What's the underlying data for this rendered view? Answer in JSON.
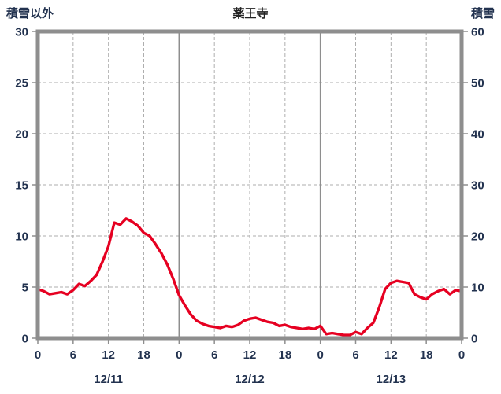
{
  "header": {
    "left_label": "積雪以外",
    "title": "薬王寺",
    "right_label": "積雪"
  },
  "chart_data": {
    "type": "line",
    "title": "薬王寺",
    "left_axis": {
      "label": "積雪以外",
      "range": [
        0,
        30
      ],
      "ticks": [
        0,
        5,
        10,
        15,
        20,
        25,
        30
      ]
    },
    "right_axis": {
      "label": "積雪",
      "range": [
        0,
        60
      ],
      "ticks": [
        0,
        10,
        20,
        30,
        40,
        50,
        60
      ]
    },
    "x_axis": {
      "range": [
        0,
        72
      ],
      "hour_ticks": [
        0,
        6,
        12,
        18,
        24,
        30,
        36,
        42,
        48,
        54,
        60,
        66,
        72
      ],
      "hour_tick_labels": [
        "0",
        "6",
        "12",
        "18",
        "0",
        "6",
        "12",
        "18",
        "0",
        "6",
        "12",
        "18",
        "0"
      ],
      "day_labels": [
        "12/11",
        "12/12",
        "12/13"
      ],
      "day_label_positions": [
        12,
        36,
        60
      ]
    },
    "grid": {
      "horizontal_dashed_at": [
        5,
        10,
        15,
        20,
        25
      ],
      "vertical_dashed": true,
      "solid_day_boundaries": [
        24,
        48
      ]
    },
    "series": [
      {
        "name": "積雪以外",
        "axis": "left",
        "color": "#e60021",
        "width": 3.4,
        "x": [
          0,
          1,
          2,
          3,
          4,
          5,
          6,
          7,
          8,
          9,
          10,
          11,
          12,
          13,
          14,
          15,
          16,
          17,
          18,
          19,
          20,
          21,
          22,
          23,
          24,
          25,
          26,
          27,
          28,
          29,
          30,
          31,
          32,
          33,
          34,
          35,
          36,
          37,
          38,
          39,
          40,
          41,
          42,
          43,
          44,
          45,
          46,
          47,
          48,
          49,
          50,
          51,
          52,
          53,
          54,
          55,
          56,
          57,
          58,
          59,
          60,
          61,
          62,
          63,
          64,
          65,
          66,
          67,
          68,
          69,
          70,
          71,
          72
        ],
        "values": [
          4.8,
          4.6,
          4.3,
          4.4,
          4.5,
          4.3,
          4.7,
          5.3,
          5.1,
          5.6,
          6.2,
          7.5,
          9.0,
          11.3,
          11.1,
          11.7,
          11.4,
          11.0,
          10.3,
          10.0,
          9.2,
          8.3,
          7.2,
          5.8,
          4.2,
          3.2,
          2.3,
          1.7,
          1.4,
          1.2,
          1.1,
          1.0,
          1.2,
          1.1,
          1.3,
          1.7,
          1.9,
          2.0,
          1.8,
          1.6,
          1.5,
          1.2,
          1.3,
          1.1,
          1.0,
          0.9,
          1.0,
          0.9,
          1.2,
          0.4,
          0.5,
          0.4,
          0.3,
          0.3,
          0.6,
          0.4,
          1.0,
          1.5,
          3.0,
          4.8,
          5.4,
          5.6,
          5.5,
          5.4,
          4.3,
          4.0,
          3.8,
          4.3,
          4.6,
          4.8,
          4.3,
          4.7,
          4.6
        ]
      },
      {
        "name": "積雪",
        "axis": "right",
        "color": "#6a35a8",
        "width": 2.6,
        "x": [
          0,
          72
        ],
        "values": [
          0,
          0
        ]
      }
    ],
    "colors": {
      "border": "#8e8e8e",
      "grid_dashed": "#aeaeae",
      "grid_solid": "#8e8e8e",
      "tick": "#8e8e8e",
      "text": "#22324f",
      "title": "#222222"
    }
  }
}
